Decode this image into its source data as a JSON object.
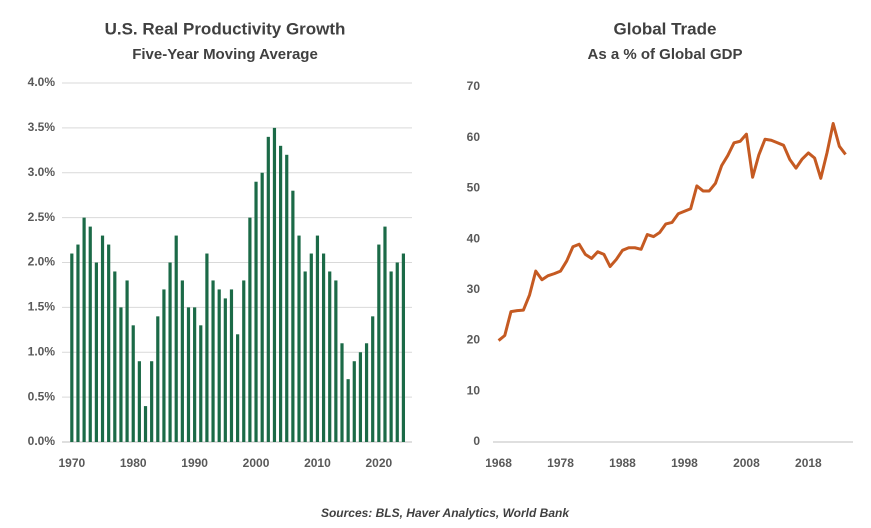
{
  "chart_data": [
    {
      "type": "bar",
      "title": "U.S. Real Productivity  Growth",
      "subtitle": "Five-Year Moving Average",
      "color": "#1b6a47",
      "grid": true,
      "x": [
        1970,
        1971,
        1972,
        1973,
        1974,
        1975,
        1976,
        1977,
        1978,
        1979,
        1980,
        1981,
        1982,
        1983,
        1984,
        1985,
        1986,
        1987,
        1988,
        1989,
        1990,
        1991,
        1992,
        1993,
        1994,
        1995,
        1996,
        1997,
        1998,
        1999,
        2000,
        2001,
        2002,
        2003,
        2004,
        2005,
        2006,
        2007,
        2008,
        2009,
        2010,
        2011,
        2012,
        2013,
        2014,
        2015,
        2016,
        2017,
        2018,
        2019,
        2020,
        2021,
        2022,
        2023,
        2024
      ],
      "values": [
        2.1,
        2.2,
        2.5,
        2.4,
        2.0,
        2.3,
        2.2,
        1.9,
        1.5,
        1.8,
        1.3,
        0.9,
        0.4,
        0.9,
        1.4,
        1.7,
        2.0,
        2.3,
        1.8,
        1.5,
        1.5,
        1.3,
        2.1,
        1.8,
        1.7,
        1.6,
        1.7,
        1.2,
        1.8,
        2.5,
        2.9,
        3.0,
        3.4,
        3.5,
        3.3,
        3.2,
        2.8,
        2.3,
        1.9,
        2.1,
        2.3,
        2.1,
        1.9,
        1.8,
        1.1,
        0.7,
        0.9,
        1.0,
        1.1,
        1.4,
        2.2,
        2.4,
        1.9,
        2.0,
        2.1
      ],
      "xlim": [
        1968.4,
        2025.4
      ],
      "xticks": [
        1970,
        1980,
        1990,
        2000,
        2010,
        2020
      ],
      "ylim": [
        0,
        4
      ],
      "yticks": [
        {
          "value": 0,
          "label": "0.0%"
        },
        {
          "value": 0.5,
          "label": "0.5%"
        },
        {
          "value": 1,
          "label": "1.0%"
        },
        {
          "value": 1.5,
          "label": "1.5%"
        },
        {
          "value": 2,
          "label": "2.0%"
        },
        {
          "value": 2.5,
          "label": "2.5%"
        },
        {
          "value": 3,
          "label": "3.0%"
        },
        {
          "value": 3.5,
          "label": "3.5%"
        },
        {
          "value": 4,
          "label": "4.0%"
        }
      ]
    },
    {
      "type": "line",
      "title": "Global Trade",
      "subtitle": "As a % of Global GDP",
      "color": "#c55a22",
      "grid": false,
      "x": [
        1968,
        1969,
        1970,
        1971,
        1972,
        1973,
        1974,
        1975,
        1976,
        1977,
        1978,
        1979,
        1980,
        1981,
        1982,
        1983,
        1984,
        1985,
        1986,
        1987,
        1988,
        1989,
        1990,
        1991,
        1992,
        1993,
        1994,
        1995,
        1996,
        1997,
        1998,
        1999,
        2000,
        2001,
        2002,
        2003,
        2004,
        2005,
        2006,
        2007,
        2008,
        2009,
        2010,
        2011,
        2012,
        2013,
        2014,
        2015,
        2016,
        2017,
        2018,
        2019,
        2020,
        2021,
        2022,
        2023,
        2024
      ],
      "values": [
        20,
        21,
        25.7,
        25.9,
        26,
        29,
        33.7,
        32,
        32.8,
        33.2,
        33.7,
        35.7,
        38.5,
        39,
        37,
        36.2,
        37.5,
        37,
        34.6,
        36,
        37.8,
        38.3,
        38.3,
        38,
        40.9,
        40.5,
        41.3,
        43,
        43.3,
        45,
        45.5,
        46,
        50.5,
        49.5,
        49.5,
        51,
        54.5,
        56.5,
        59,
        59.3,
        60.7,
        52.2,
        56.6,
        59.7,
        59.5,
        59,
        58.5,
        55.7,
        54,
        55.8,
        57,
        56,
        52,
        57,
        62.8,
        58.3,
        56.7
      ],
      "xlim": [
        1967.1,
        2025.2
      ],
      "xticks": [
        1968,
        1978,
        1988,
        1998,
        2008,
        2018
      ],
      "ylim": [
        0,
        70
      ],
      "yticks": [
        0,
        10,
        20,
        30,
        40,
        50,
        60,
        70
      ]
    }
  ],
  "footer": "Sources: BLS, Haver Analytics, World Bank"
}
